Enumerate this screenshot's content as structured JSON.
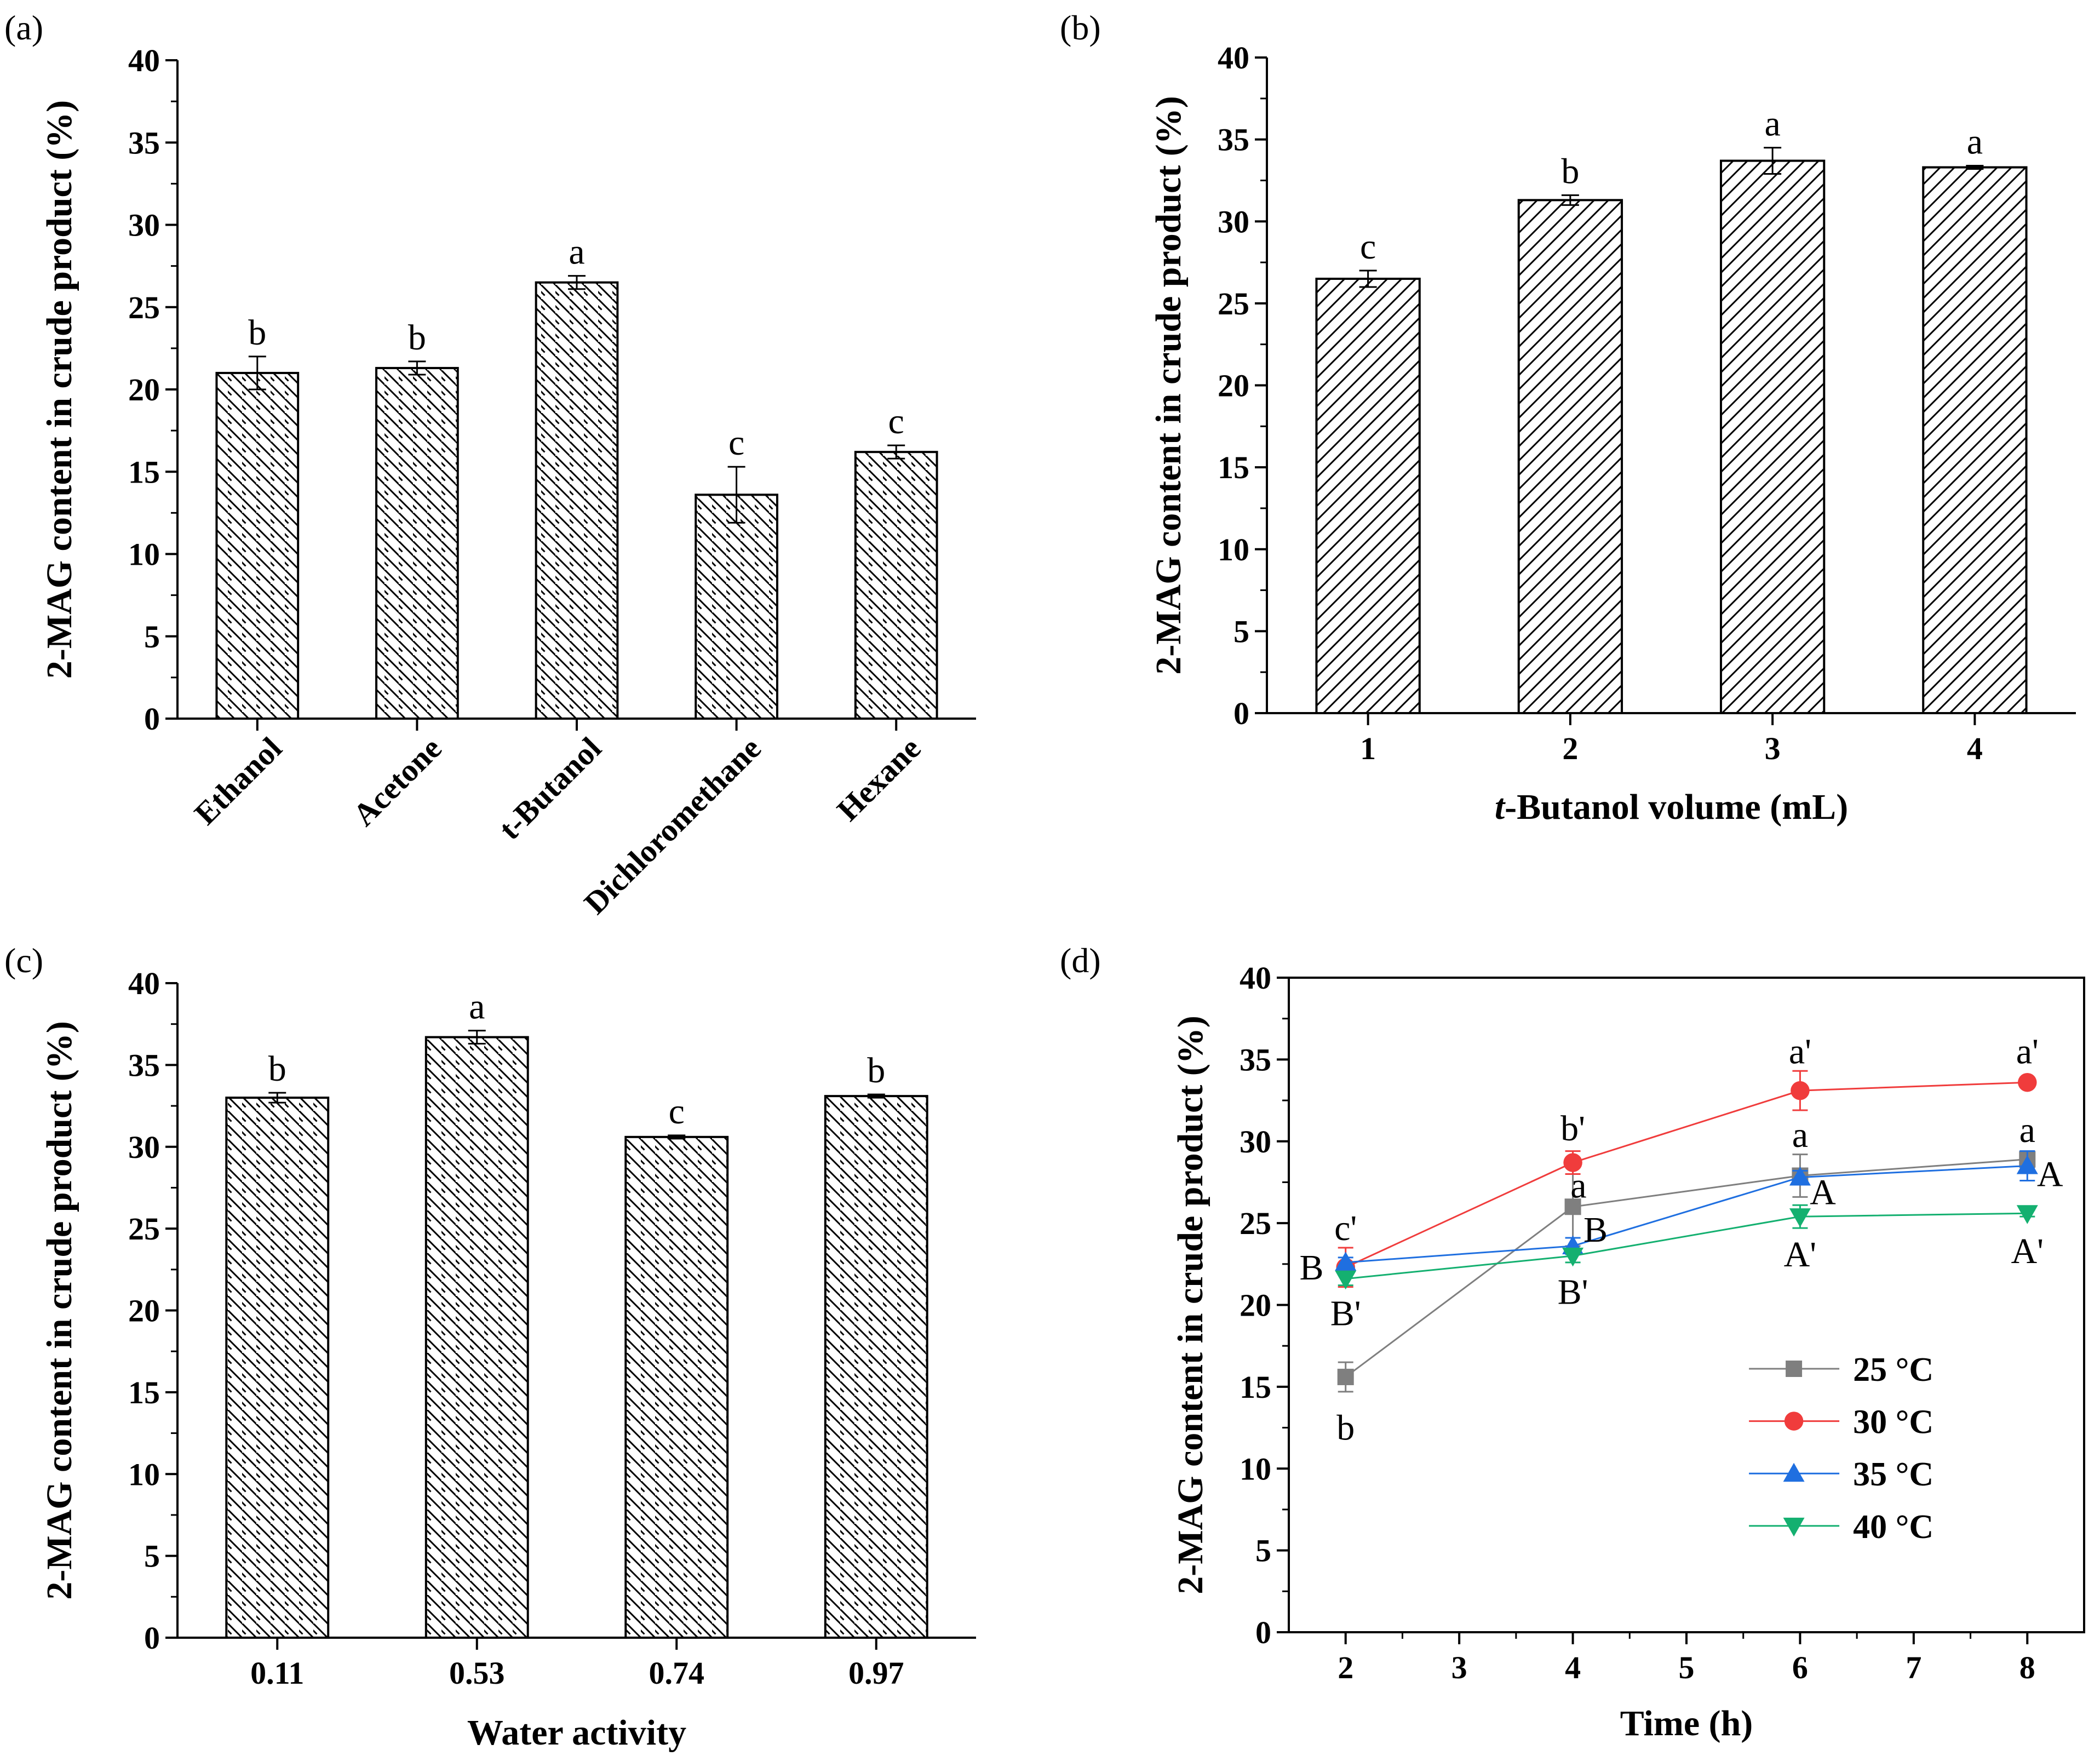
{
  "figure": {
    "colors": {
      "axis": "#000000",
      "bar_fill": "#ffffff",
      "hatch": "#000000"
    }
  },
  "chart_data": [
    {
      "type": "bar",
      "panel_label": "(a)",
      "title": "",
      "xlabel": "",
      "ylabel": "2-MAG content in crude product (%)",
      "ylim": [
        0,
        40
      ],
      "yticks": [
        "0",
        "5",
        "10",
        "15",
        "20",
        "25",
        "30",
        "35",
        "40"
      ],
      "categories": [
        "Ethanol",
        "Acetone",
        "t-Butanol",
        "Dichloromethane",
        "Hexane"
      ],
      "values": [
        21.0,
        21.3,
        26.5,
        13.6,
        16.2
      ],
      "errors": [
        1.0,
        0.4,
        0.4,
        1.7,
        0.4
      ],
      "letters": [
        "b",
        "b",
        "a",
        "c",
        "c"
      ],
      "hatch": "backslash",
      "rotated_tick_labels": true
    },
    {
      "type": "bar",
      "panel_label": "(b)",
      "title": "",
      "xlabel_italic": "t",
      "xlabel": "-Butanol volume (mL)",
      "ylabel": "2-MAG content in crude product (%)",
      "ylim": [
        0,
        40
      ],
      "yticks": [
        "0",
        "5",
        "10",
        "15",
        "20",
        "25",
        "30",
        "35",
        "40"
      ],
      "categories": [
        "1",
        "2",
        "3",
        "4"
      ],
      "values": [
        26.5,
        31.3,
        33.7,
        33.3
      ],
      "errors": [
        0.5,
        0.3,
        0.8,
        0.1
      ],
      "letters": [
        "c",
        "b",
        "a",
        "a"
      ],
      "hatch": "slash",
      "rotated_tick_labels": false
    },
    {
      "type": "bar",
      "panel_label": "(c)",
      "title": "",
      "xlabel": "Water activity",
      "ylabel": "2-MAG content in crude product (%)",
      "ylim": [
        0,
        40
      ],
      "yticks": [
        "0",
        "5",
        "10",
        "15",
        "20",
        "25",
        "30",
        "35",
        "40"
      ],
      "categories": [
        "0.11",
        "0.53",
        "0.74",
        "0.97"
      ],
      "values": [
        33.0,
        36.7,
        30.6,
        33.1
      ],
      "errors": [
        0.3,
        0.4,
        0.1,
        0.1
      ],
      "letters": [
        "b",
        "a",
        "c",
        "b"
      ],
      "hatch": "backslash",
      "rotated_tick_labels": false
    },
    {
      "type": "line",
      "panel_label": "(d)",
      "title": "",
      "xlabel": "Time (h)",
      "ylabel": "2-MAG content in crude product (%)",
      "xlim": [
        1.5,
        8.5
      ],
      "xticks": [
        "2",
        "3",
        "4",
        "5",
        "6",
        "7",
        "8"
      ],
      "ylim": [
        0,
        40
      ],
      "yticks": [
        "0",
        "5",
        "10",
        "15",
        "20",
        "25",
        "30",
        "35",
        "40"
      ],
      "legend_position": "bottom-right",
      "series": [
        {
          "name": "25 °C",
          "color": "#7f7f7f",
          "marker": "square",
          "x": [
            2,
            4,
            6,
            8
          ],
          "y": [
            15.6,
            26.0,
            27.9,
            28.9
          ],
          "errors": [
            0.9,
            2.4,
            1.3,
            0.5
          ]
        },
        {
          "name": "30 °C",
          "color": "#f03c3c",
          "marker": "circle",
          "x": [
            2,
            4,
            6,
            8
          ],
          "y": [
            22.3,
            28.7,
            33.1,
            33.6
          ],
          "errors": [
            1.2,
            0.7,
            1.2,
            0.3
          ]
        },
        {
          "name": "35 °C",
          "color": "#1f6fe0",
          "marker": "triangle-up",
          "x": [
            2,
            4,
            6,
            8
          ],
          "y": [
            22.6,
            23.6,
            27.8,
            28.5
          ],
          "errors": [
            0.3,
            0.5,
            0.4,
            0.9
          ]
        },
        {
          "name": "40 °C",
          "color": "#14b070",
          "marker": "triangle-down",
          "x": [
            2,
            4,
            6,
            8
          ],
          "y": [
            21.6,
            23.0,
            25.4,
            25.6
          ],
          "errors": [
            0.4,
            0.4,
            0.7,
            0.2
          ]
        }
      ],
      "annotations": [
        {
          "text": "b",
          "x": 2,
          "y": 12.5
        },
        {
          "text": "a",
          "x": 4.05,
          "y": 27.3
        },
        {
          "text": "a",
          "x": 6,
          "y": 30.4
        },
        {
          "text": "a",
          "x": 8,
          "y": 30.7
        },
        {
          "text": "c'",
          "x": 2,
          "y": 24.7
        },
        {
          "text": "b'",
          "x": 4,
          "y": 30.8
        },
        {
          "text": "a'",
          "x": 6,
          "y": 35.5
        },
        {
          "text": "a'",
          "x": 8,
          "y": 35.5
        },
        {
          "text": "B",
          "x": 1.7,
          "y": 22.3
        },
        {
          "text": "B",
          "x": 4.2,
          "y": 24.6
        },
        {
          "text": "A",
          "x": 6.2,
          "y": 26.9
        },
        {
          "text": "A",
          "x": 8.2,
          "y": 28.0
        },
        {
          "text": "B'",
          "x": 2,
          "y": 19.5
        },
        {
          "text": "B'",
          "x": 4,
          "y": 20.8
        },
        {
          "text": "A'",
          "x": 6,
          "y": 23.1
        },
        {
          "text": "A'",
          "x": 8,
          "y": 23.3
        }
      ]
    }
  ]
}
